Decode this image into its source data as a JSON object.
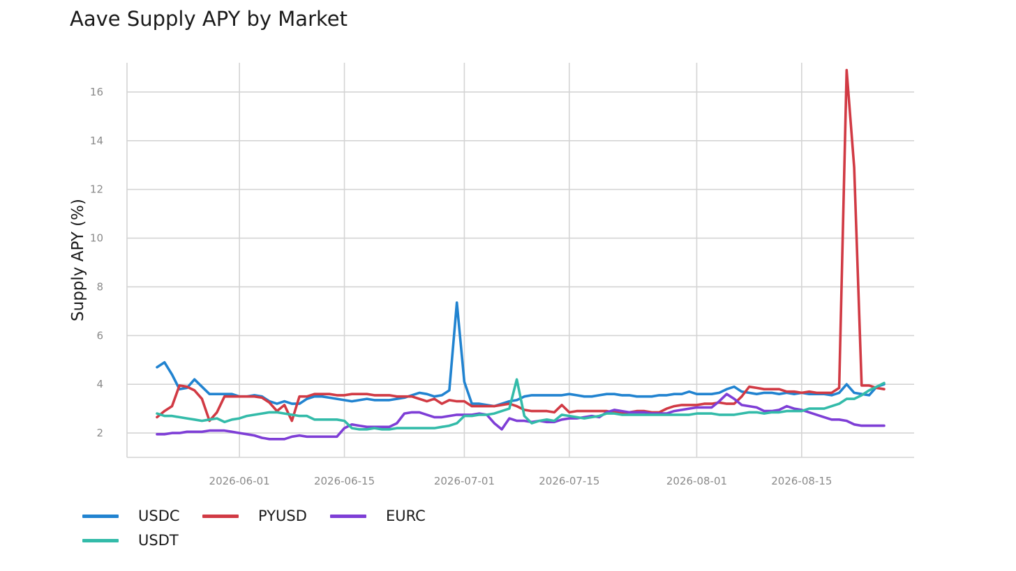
{
  "chart_data": {
    "type": "line",
    "title": "Aave Supply APY by Market",
    "xlabel": "",
    "ylabel": "Supply APY (%)",
    "x_ticks": [
      "2026-06-01",
      "2026-06-15",
      "2026-07-01",
      "2026-07-15",
      "2026-08-01",
      "2026-08-15"
    ],
    "y_ticks": [
      2,
      4,
      6,
      8,
      10,
      12,
      14,
      16
    ],
    "xlim": [
      "2026-05-17",
      "2026-08-30"
    ],
    "ylim": [
      1,
      17.2
    ],
    "grid": true,
    "legend_position": "bottom-left",
    "x": [
      "2026-05-21",
      "2026-05-22",
      "2026-05-23",
      "2026-05-24",
      "2026-05-25",
      "2026-05-26",
      "2026-05-27",
      "2026-05-28",
      "2026-05-29",
      "2026-05-30",
      "2026-05-31",
      "2026-06-01",
      "2026-06-02",
      "2026-06-03",
      "2026-06-04",
      "2026-06-05",
      "2026-06-06",
      "2026-06-07",
      "2026-06-08",
      "2026-06-09",
      "2026-06-10",
      "2026-06-11",
      "2026-06-12",
      "2026-06-13",
      "2026-06-14",
      "2026-06-15",
      "2026-06-16",
      "2026-06-17",
      "2026-06-18",
      "2026-06-19",
      "2026-06-20",
      "2026-06-21",
      "2026-06-22",
      "2026-06-23",
      "2026-06-24",
      "2026-06-25",
      "2026-06-26",
      "2026-06-27",
      "2026-06-28",
      "2026-06-29",
      "2026-06-30",
      "2026-07-01",
      "2026-07-02",
      "2026-07-03",
      "2026-07-04",
      "2026-07-05",
      "2026-07-06",
      "2026-07-07",
      "2026-07-08",
      "2026-07-09",
      "2026-07-10",
      "2026-07-11",
      "2026-07-12",
      "2026-07-13",
      "2026-07-14",
      "2026-07-15",
      "2026-07-16",
      "2026-07-17",
      "2026-07-18",
      "2026-07-19",
      "2026-07-20",
      "2026-07-21",
      "2026-07-22",
      "2026-07-23",
      "2026-07-24",
      "2026-07-25",
      "2026-07-26",
      "2026-07-27",
      "2026-07-28",
      "2026-07-29",
      "2026-07-30",
      "2026-07-31",
      "2026-08-01",
      "2026-08-02",
      "2026-08-03",
      "2026-08-04",
      "2026-08-05",
      "2026-08-06",
      "2026-08-07",
      "2026-08-08",
      "2026-08-09",
      "2026-08-10",
      "2026-08-11",
      "2026-08-12",
      "2026-08-13",
      "2026-08-14",
      "2026-08-15",
      "2026-08-16",
      "2026-08-17",
      "2026-08-18",
      "2026-08-19",
      "2026-08-20",
      "2026-08-21",
      "2026-08-22",
      "2026-08-23",
      "2026-08-24",
      "2026-08-25",
      "2026-08-26"
    ],
    "series": [
      {
        "name": "USDC",
        "color": "#2183d0",
        "values": [
          4.7,
          4.9,
          4.4,
          3.8,
          3.85,
          4.2,
          3.9,
          3.6,
          3.6,
          3.6,
          3.6,
          3.5,
          3.5,
          3.55,
          3.5,
          3.3,
          3.2,
          3.3,
          3.2,
          3.2,
          3.4,
          3.5,
          3.5,
          3.45,
          3.4,
          3.35,
          3.3,
          3.35,
          3.4,
          3.35,
          3.35,
          3.35,
          3.4,
          3.45,
          3.55,
          3.65,
          3.6,
          3.5,
          3.55,
          3.75,
          7.35,
          4.1,
          3.2,
          3.2,
          3.15,
          3.1,
          3.2,
          3.3,
          3.35,
          3.5,
          3.55,
          3.55,
          3.55,
          3.55,
          3.55,
          3.6,
          3.55,
          3.5,
          3.5,
          3.55,
          3.6,
          3.6,
          3.55,
          3.55,
          3.5,
          3.5,
          3.5,
          3.55,
          3.55,
          3.6,
          3.6,
          3.7,
          3.6,
          3.6,
          3.6,
          3.65,
          3.8,
          3.9,
          3.7,
          3.65,
          3.6,
          3.65,
          3.65,
          3.6,
          3.65,
          3.6,
          3.65,
          3.6,
          3.6,
          3.6,
          3.55,
          3.65,
          4.0,
          3.65,
          3.6,
          3.55,
          3.9,
          4.0
        ]
      },
      {
        "name": "PYUSD",
        "color": "#d13a44",
        "values": [
          2.65,
          2.9,
          3.1,
          3.95,
          3.9,
          3.75,
          3.4,
          2.5,
          2.85,
          3.5,
          3.5,
          3.5,
          3.5,
          3.5,
          3.45,
          3.25,
          2.9,
          3.15,
          2.5,
          3.5,
          3.5,
          3.6,
          3.6,
          3.6,
          3.55,
          3.55,
          3.6,
          3.6,
          3.6,
          3.55,
          3.55,
          3.55,
          3.5,
          3.5,
          3.5,
          3.4,
          3.3,
          3.4,
          3.2,
          3.35,
          3.3,
          3.3,
          3.1,
          3.1,
          3.1,
          3.1,
          3.15,
          3.2,
          3.1,
          2.95,
          2.9,
          2.9,
          2.9,
          2.85,
          3.15,
          2.85,
          2.9,
          2.9,
          2.9,
          2.9,
          2.9,
          2.85,
          2.8,
          2.85,
          2.9,
          2.9,
          2.85,
          2.85,
          3.0,
          3.1,
          3.15,
          3.15,
          3.15,
          3.2,
          3.2,
          3.25,
          3.2,
          3.2,
          3.5,
          3.9,
          3.85,
          3.8,
          3.8,
          3.8,
          3.7,
          3.7,
          3.65,
          3.7,
          3.65,
          3.65,
          3.65,
          3.85,
          16.9,
          12.9,
          3.95,
          3.95,
          3.85,
          3.8
        ]
      },
      {
        "name": "EURC",
        "color": "#7e3ed6",
        "values": [
          1.95,
          1.95,
          2.0,
          2.0,
          2.05,
          2.05,
          2.05,
          2.1,
          2.1,
          2.1,
          2.05,
          2.0,
          1.95,
          1.9,
          1.8,
          1.75,
          1.75,
          1.75,
          1.85,
          1.9,
          1.85,
          1.85,
          1.85,
          1.85,
          1.85,
          2.2,
          2.35,
          2.3,
          2.25,
          2.25,
          2.25,
          2.25,
          2.4,
          2.8,
          2.85,
          2.85,
          2.75,
          2.65,
          2.65,
          2.7,
          2.75,
          2.75,
          2.75,
          2.8,
          2.75,
          2.4,
          2.15,
          2.6,
          2.5,
          2.5,
          2.45,
          2.5,
          2.45,
          2.45,
          2.55,
          2.6,
          2.6,
          2.65,
          2.7,
          2.65,
          2.85,
          2.95,
          2.9,
          2.85,
          2.85,
          2.85,
          2.8,
          2.8,
          2.8,
          2.9,
          2.95,
          3.0,
          3.05,
          3.05,
          3.05,
          3.3,
          3.6,
          3.4,
          3.15,
          3.1,
          3.05,
          2.9,
          2.9,
          2.95,
          3.1,
          3.0,
          2.95,
          2.85,
          2.75,
          2.65,
          2.55,
          2.55,
          2.5,
          2.35,
          2.3,
          2.3,
          2.3,
          2.3
        ]
      },
      {
        "name": "USDT",
        "color": "#33bba9",
        "values": [
          2.8,
          2.7,
          2.7,
          2.65,
          2.6,
          2.55,
          2.5,
          2.55,
          2.6,
          2.45,
          2.55,
          2.6,
          2.7,
          2.75,
          2.8,
          2.85,
          2.85,
          2.8,
          2.75,
          2.7,
          2.7,
          2.55,
          2.55,
          2.55,
          2.55,
          2.5,
          2.2,
          2.15,
          2.15,
          2.2,
          2.15,
          2.15,
          2.2,
          2.2,
          2.2,
          2.2,
          2.2,
          2.2,
          2.25,
          2.3,
          2.4,
          2.7,
          2.7,
          2.75,
          2.75,
          2.8,
          2.9,
          3.0,
          4.2,
          2.7,
          2.4,
          2.5,
          2.55,
          2.5,
          2.75,
          2.7,
          2.65,
          2.6,
          2.65,
          2.7,
          2.8,
          2.8,
          2.75,
          2.75,
          2.75,
          2.75,
          2.75,
          2.75,
          2.75,
          2.75,
          2.75,
          2.75,
          2.8,
          2.8,
          2.8,
          2.75,
          2.75,
          2.75,
          2.8,
          2.85,
          2.85,
          2.8,
          2.85,
          2.85,
          2.9,
          2.9,
          2.9,
          3.0,
          3.0,
          3.0,
          3.1,
          3.2,
          3.4,
          3.4,
          3.55,
          3.75,
          3.9,
          4.05
        ]
      }
    ]
  }
}
